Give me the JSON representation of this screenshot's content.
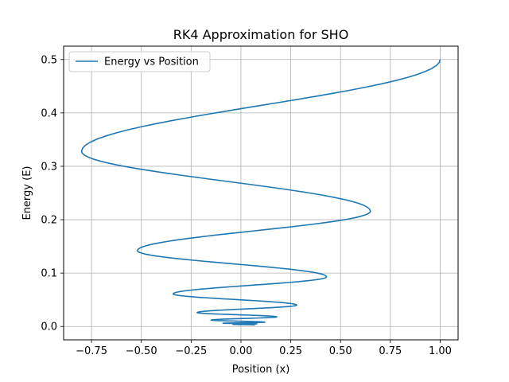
{
  "chart_data": {
    "type": "line",
    "title": "RK4 Approximation for SHO",
    "xlabel": "Position (x)",
    "ylabel": "Energy (E)",
    "xlim": [
      -0.89,
      1.09
    ],
    "ylim": [
      -0.025,
      0.525
    ],
    "xticks": [
      -0.75,
      -0.5,
      -0.25,
      0.0,
      0.25,
      0.5,
      0.75,
      1.0
    ],
    "xtick_labels": [
      "−0.75",
      "−0.50",
      "−0.25",
      "0.00",
      "0.25",
      "0.50",
      "0.75",
      "1.00"
    ],
    "yticks": [
      0.0,
      0.1,
      0.2,
      0.3,
      0.4,
      0.5
    ],
    "ytick_labels": [
      "0.0",
      "0.1",
      "0.2",
      "0.3",
      "0.4",
      "0.5"
    ],
    "grid": true,
    "legend_position": "top-left",
    "series": [
      {
        "name": "Energy vs Position",
        "color": "#1f77b4",
        "turning_points": [
          [
            1.0,
            0.5
          ],
          [
            -0.8,
            0.328
          ],
          [
            0.65,
            0.216
          ],
          [
            -0.52,
            0.142
          ],
          [
            0.43,
            0.093
          ],
          [
            -0.34,
            0.061
          ],
          [
            0.28,
            0.04
          ],
          [
            -0.22,
            0.026
          ],
          [
            0.18,
            0.018
          ],
          [
            -0.15,
            0.012
          ],
          [
            0.12,
            0.008
          ],
          [
            -0.09,
            0.006
          ],
          [
            0.08,
            0.005
          ],
          [
            -0.04,
            0.004
          ],
          [
            0.07,
            0.003
          ]
        ]
      }
    ]
  }
}
